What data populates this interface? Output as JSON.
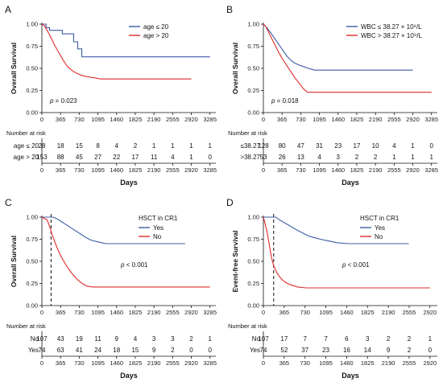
{
  "colors": {
    "series1": "#3b5ba5",
    "series2": "#e02a2a",
    "axis": "#111111"
  },
  "chart_data": [
    {
      "type": "line",
      "panel_label": "A",
      "ylabel": "Overall Survival",
      "xlabel": "Days",
      "xlim": [
        0,
        3400
      ],
      "ylim": [
        0,
        1.0
      ],
      "xticks": [
        "0",
        "365",
        "730",
        "1095",
        "1460",
        "1825",
        "2190",
        "2555",
        "2920",
        "3285"
      ],
      "yticks": [
        "0.00",
        "0.25",
        "0.50",
        "0.75",
        "1.00"
      ],
      "legend_position": "top-right",
      "p_value_text": "p = 0.023",
      "series": [
        {
          "name": "age ≤ 20",
          "color": "#3b5ba5",
          "points": [
            [
              0,
              1.0
            ],
            [
              80,
              1.0
            ],
            [
              80,
              0.96
            ],
            [
              150,
              0.96
            ],
            [
              150,
              0.93
            ],
            [
              400,
              0.93
            ],
            [
              400,
              0.89
            ],
            [
              620,
              0.89
            ],
            [
              620,
              0.8
            ],
            [
              700,
              0.8
            ],
            [
              700,
              0.72
            ],
            [
              780,
              0.72
            ],
            [
              780,
              0.63
            ],
            [
              3285,
              0.63
            ]
          ]
        },
        {
          "name": "age > 20",
          "color": "#e02a2a",
          "points": [
            [
              0,
              1.0
            ],
            [
              50,
              0.98
            ],
            [
              100,
              0.93
            ],
            [
              150,
              0.88
            ],
            [
              200,
              0.82
            ],
            [
              260,
              0.75
            ],
            [
              320,
              0.69
            ],
            [
              380,
              0.63
            ],
            [
              440,
              0.57
            ],
            [
              500,
              0.52
            ],
            [
              560,
              0.49
            ],
            [
              630,
              0.46
            ],
            [
              700,
              0.44
            ],
            [
              780,
              0.42
            ],
            [
              860,
              0.41
            ],
            [
              950,
              0.4
            ],
            [
              1050,
              0.39
            ],
            [
              1150,
              0.38
            ],
            [
              2920,
              0.38
            ]
          ]
        }
      ],
      "risk_table": {
        "title": "Number at risk",
        "rows": [
          {
            "label": "age ≤ 20",
            "values": [
              "28",
              "18",
              "15",
              "8",
              "4",
              "2",
              "1",
              "1",
              "1",
              "1"
            ]
          },
          {
            "label": "age > 20",
            "values": [
              "153",
              "88",
              "45",
              "27",
              "22",
              "17",
              "11",
              "4",
              "1",
              "0"
            ]
          }
        ]
      }
    },
    {
      "type": "line",
      "panel_label": "B",
      "ylabel": "Overall Survival",
      "xlabel": "Days",
      "xlim": [
        0,
        3400
      ],
      "ylim": [
        0,
        1.0
      ],
      "xticks": [
        "0",
        "365",
        "730",
        "1095",
        "1460",
        "1825",
        "2190",
        "2555",
        "2920",
        "3285"
      ],
      "yticks": [
        "0.00",
        "0.25",
        "0.50",
        "0.75",
        "1.00"
      ],
      "legend_position": "top-right",
      "p_value_text": "p = 0.018",
      "series": [
        {
          "name": "WBC ≤ 38.27 × 10⁹/L",
          "color": "#3b5ba5",
          "points": [
            [
              0,
              1.0
            ],
            [
              40,
              0.98
            ],
            [
              80,
              0.95
            ],
            [
              120,
              0.92
            ],
            [
              170,
              0.88
            ],
            [
              230,
              0.83
            ],
            [
              290,
              0.78
            ],
            [
              350,
              0.73
            ],
            [
              410,
              0.68
            ],
            [
              470,
              0.63
            ],
            [
              540,
              0.59
            ],
            [
              610,
              0.56
            ],
            [
              690,
              0.54
            ],
            [
              780,
              0.52
            ],
            [
              880,
              0.5
            ],
            [
              1000,
              0.48
            ],
            [
              2920,
              0.48
            ]
          ]
        },
        {
          "name": "WBC > 38.27 × 10⁹/L",
          "color": "#e02a2a",
          "points": [
            [
              0,
              1.0
            ],
            [
              50,
              0.97
            ],
            [
              100,
              0.91
            ],
            [
              160,
              0.84
            ],
            [
              230,
              0.76
            ],
            [
              300,
              0.68
            ],
            [
              380,
              0.6
            ],
            [
              460,
              0.53
            ],
            [
              540,
              0.46
            ],
            [
              620,
              0.39
            ],
            [
              700,
              0.33
            ],
            [
              780,
              0.27
            ],
            [
              860,
              0.23
            ],
            [
              3285,
              0.23
            ]
          ]
        }
      ],
      "risk_table": {
        "title": "Number at risk",
        "rows": [
          {
            "label": "≤38.27",
            "values": [
              "128",
              "80",
              "47",
              "31",
              "23",
              "17",
              "10",
              "4",
              "1",
              "0"
            ]
          },
          {
            "label": ">38.27",
            "values": [
              "53",
              "26",
              "13",
              "4",
              "3",
              "2",
              "2",
              "1",
              "1",
              "1"
            ]
          }
        ]
      }
    },
    {
      "type": "line",
      "panel_label": "C",
      "ylabel": "Overall Survival",
      "xlabel": "Days",
      "xlim": [
        0,
        3400
      ],
      "ylim": [
        0,
        1.0
      ],
      "xticks": [
        "0",
        "365",
        "730",
        "1095",
        "1460",
        "1825",
        "2190",
        "2555",
        "2920",
        "3285"
      ],
      "yticks": [
        "0.00",
        "0.25",
        "0.50",
        "0.75",
        "1.00"
      ],
      "legend_title": "HSCT in CR1",
      "legend_position": "top-right",
      "p_value_text": "p < 0.001",
      "landmark_day": 180,
      "series": [
        {
          "name": "Yes",
          "color": "#3b5ba5",
          "points": [
            [
              0,
              1.0
            ],
            [
              220,
              1.0
            ],
            [
              300,
              0.98
            ],
            [
              380,
              0.95
            ],
            [
              460,
              0.92
            ],
            [
              540,
              0.89
            ],
            [
              620,
              0.86
            ],
            [
              700,
              0.83
            ],
            [
              780,
              0.8
            ],
            [
              860,
              0.77
            ],
            [
              960,
              0.74
            ],
            [
              1100,
              0.72
            ],
            [
              1250,
              0.7
            ],
            [
              2800,
              0.7
            ]
          ]
        },
        {
          "name": "No",
          "color": "#e02a2a",
          "points": [
            [
              0,
              1.0
            ],
            [
              100,
              0.97
            ],
            [
              150,
              0.9
            ],
            [
              200,
              0.8
            ],
            [
              260,
              0.71
            ],
            [
              320,
              0.62
            ],
            [
              390,
              0.54
            ],
            [
              460,
              0.47
            ],
            [
              540,
              0.4
            ],
            [
              620,
              0.34
            ],
            [
              700,
              0.29
            ],
            [
              790,
              0.25
            ],
            [
              880,
              0.22
            ],
            [
              1000,
              0.21
            ],
            [
              3285,
              0.21
            ]
          ]
        }
      ],
      "risk_table": {
        "title": "Number at risk",
        "rows": [
          {
            "label": "No",
            "values": [
              "107",
              "43",
              "19",
              "11",
              "9",
              "4",
              "3",
              "3",
              "2",
              "1"
            ]
          },
          {
            "label": "Yes",
            "values": [
              "74",
              "63",
              "41",
              "24",
              "18",
              "15",
              "9",
              "2",
              "0",
              "0"
            ]
          }
        ]
      }
    },
    {
      "type": "line",
      "panel_label": "D",
      "ylabel": "Event-free Survival",
      "xlabel": "Days",
      "xlim": [
        0,
        3050
      ],
      "ylim": [
        0,
        1.0
      ],
      "xticks": [
        "0",
        "365",
        "730",
        "1095",
        "1460",
        "1825",
        "2190",
        "2555",
        "2920"
      ],
      "yticks": [
        "0.00",
        "0.25",
        "0.50",
        "0.75",
        "1.00"
      ],
      "legend_title": "HSCT in CR1",
      "legend_position": "top-right",
      "p_value_text": "p < 0.001",
      "landmark_day": 180,
      "series": [
        {
          "name": "Yes",
          "color": "#3b5ba5",
          "points": [
            [
              0,
              1.0
            ],
            [
              220,
              1.0
            ],
            [
              280,
              0.97
            ],
            [
              360,
              0.94
            ],
            [
              440,
              0.91
            ],
            [
              520,
              0.88
            ],
            [
              600,
              0.85
            ],
            [
              690,
              0.82
            ],
            [
              780,
              0.79
            ],
            [
              880,
              0.77
            ],
            [
              1000,
              0.75
            ],
            [
              1150,
              0.73
            ],
            [
              1300,
              0.71
            ],
            [
              1500,
              0.7
            ],
            [
              2550,
              0.7
            ]
          ]
        },
        {
          "name": "No",
          "color": "#e02a2a",
          "points": [
            [
              0,
              1.0
            ],
            [
              60,
              0.85
            ],
            [
              100,
              0.7
            ],
            [
              140,
              0.55
            ],
            [
              180,
              0.45
            ],
            [
              230,
              0.38
            ],
            [
              290,
              0.32
            ],
            [
              350,
              0.28
            ],
            [
              420,
              0.25
            ],
            [
              500,
              0.23
            ],
            [
              600,
              0.21
            ],
            [
              750,
              0.2
            ],
            [
              2920,
              0.2
            ]
          ]
        }
      ],
      "risk_table": {
        "title": "Number at risk",
        "rows": [
          {
            "label": "No",
            "values": [
              "107",
              "17",
              "7",
              "7",
              "6",
              "3",
              "2",
              "2",
              "1"
            ]
          },
          {
            "label": "Yes",
            "values": [
              "74",
              "52",
              "37",
              "23",
              "16",
              "14",
              "9",
              "2",
              "0"
            ]
          }
        ]
      }
    }
  ]
}
